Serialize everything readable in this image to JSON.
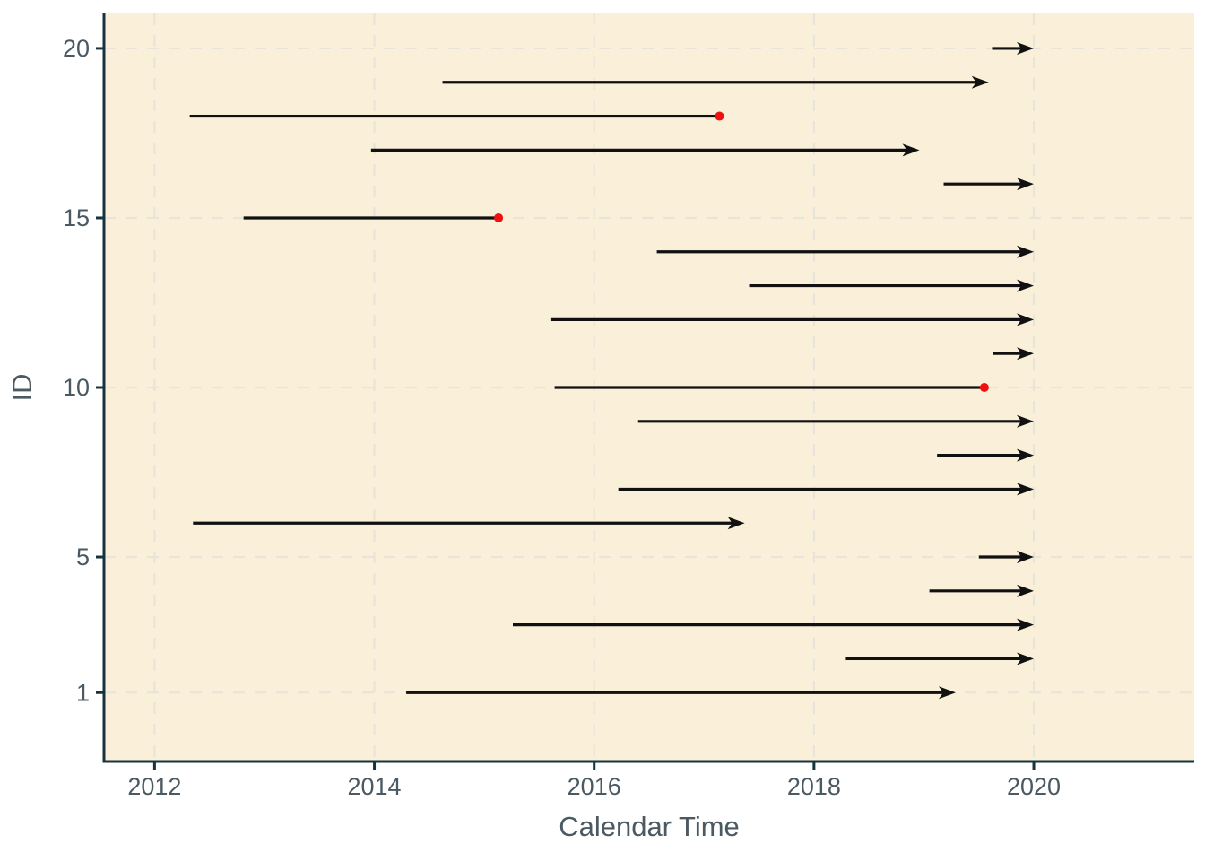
{
  "figure": {
    "background": "#ffffff",
    "panel_background": "#faf0da"
  },
  "colors": {
    "panel_bg": "#faf0da",
    "gridline": "#e8e4d9",
    "axis_line": "#17333d",
    "tick_text": "#4a5962",
    "segment": "#111111",
    "event_dot": "#ee1111"
  },
  "chart_data": {
    "type": "line",
    "variant": "swimmer-timeline-with-arrows",
    "title": "",
    "xlabel": "Calendar Time",
    "ylabel": "ID",
    "x_ticks": [
      2012,
      2014,
      2016,
      2018,
      2020
    ],
    "y_ticks": [
      1,
      5,
      10,
      15,
      20
    ],
    "xlim": [
      2011.54,
      2021.46
    ],
    "ylim": [
      -1.03,
      21.03
    ],
    "grid": "dashed major gridlines, horizontal and vertical",
    "legend_position": "none",
    "subjects": [
      {
        "id": 1,
        "start": 2014.29,
        "end": 2019.29,
        "end_marker": "arrow"
      },
      {
        "id": 2,
        "start": 2018.29,
        "end": 2020.0,
        "end_marker": "arrow"
      },
      {
        "id": 3,
        "start": 2015.26,
        "end": 2020.0,
        "end_marker": "arrow"
      },
      {
        "id": 4,
        "start": 2019.05,
        "end": 2020.0,
        "end_marker": "arrow"
      },
      {
        "id": 5,
        "start": 2019.5,
        "end": 2020.0,
        "end_marker": "arrow"
      },
      {
        "id": 6,
        "start": 2012.35,
        "end": 2017.37,
        "end_marker": "arrow"
      },
      {
        "id": 7,
        "start": 2016.22,
        "end": 2020.0,
        "end_marker": "arrow"
      },
      {
        "id": 8,
        "start": 2019.12,
        "end": 2020.0,
        "end_marker": "arrow"
      },
      {
        "id": 9,
        "start": 2016.4,
        "end": 2020.0,
        "end_marker": "arrow"
      },
      {
        "id": 10,
        "start": 2015.64,
        "end": 2019.55,
        "end_marker": "red-dot"
      },
      {
        "id": 11,
        "start": 2019.63,
        "end": 2020.0,
        "end_marker": "arrow"
      },
      {
        "id": 12,
        "start": 2015.61,
        "end": 2020.0,
        "end_marker": "arrow"
      },
      {
        "id": 13,
        "start": 2017.41,
        "end": 2020.0,
        "end_marker": "arrow"
      },
      {
        "id": 14,
        "start": 2016.57,
        "end": 2020.0,
        "end_marker": "arrow"
      },
      {
        "id": 15,
        "start": 2012.81,
        "end": 2015.13,
        "end_marker": "red-dot"
      },
      {
        "id": 16,
        "start": 2019.18,
        "end": 2020.0,
        "end_marker": "arrow"
      },
      {
        "id": 17,
        "start": 2013.97,
        "end": 2018.96,
        "end_marker": "arrow"
      },
      {
        "id": 18,
        "start": 2012.32,
        "end": 2017.14,
        "end_marker": "red-dot"
      },
      {
        "id": 19,
        "start": 2014.62,
        "end": 2019.59,
        "end_marker": "arrow"
      },
      {
        "id": 20,
        "start": 2019.62,
        "end": 2020.0,
        "end_marker": "arrow"
      }
    ]
  }
}
